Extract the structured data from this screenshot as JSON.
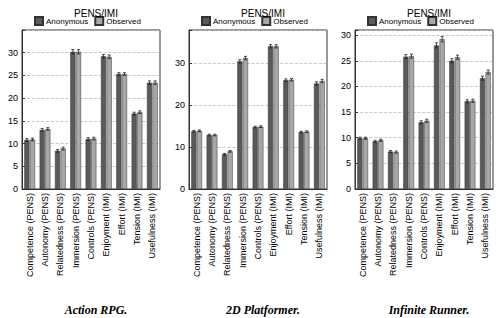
{
  "chart_data": [
    {
      "type": "bar",
      "title": "PENS/IMI",
      "xlabel": "Action RPG.",
      "categories": [
        "Competence (PENS)",
        "Autonomy (PENS)",
        "Relatedness (PENS)",
        "Immersion (PENS)",
        "Controls (PENS)",
        "Enjoyment (IMI)",
        "Effort (IMI)",
        "Tension (IMI)",
        "Usefulness (IMI)"
      ],
      "series": [
        {
          "name": "Anonymous",
          "color": "#5a5a5a",
          "values": [
            10.8,
            13.0,
            8.4,
            30.2,
            11.0,
            29.2,
            25.3,
            16.6,
            23.4
          ],
          "errors": [
            0.3,
            0.3,
            0.3,
            0.5,
            0.3,
            0.4,
            0.3,
            0.3,
            0.4
          ]
        },
        {
          "name": "Observed",
          "color": "#a8a8a8",
          "values": [
            10.9,
            13.2,
            8.9,
            30.2,
            11.1,
            29.1,
            25.3,
            16.9,
            23.4
          ],
          "errors": [
            0.3,
            0.3,
            0.3,
            0.5,
            0.3,
            0.4,
            0.3,
            0.3,
            0.4
          ]
        }
      ],
      "ylim": [
        0,
        35
      ],
      "yticks": [
        0,
        5,
        10,
        15,
        20,
        25,
        30
      ],
      "grid": true,
      "legend": "top"
    },
    {
      "type": "bar",
      "title": "PENS/IMI",
      "xlabel": "2D Platformer.",
      "categories": [
        "Competence (PENS)",
        "Autonomy (PENS)",
        "Relatedness (PENS)",
        "Immersion (PENS)",
        "Controls (PENS)",
        "Enjoyment (IMI)",
        "Effort (IMI)",
        "Tension (IMI)",
        "Usefulness (IMI)"
      ],
      "series": [
        {
          "name": "Anonymous",
          "color": "#5a5a5a",
          "values": [
            13.8,
            12.9,
            8.3,
            30.5,
            14.8,
            34.1,
            26.0,
            13.6,
            25.2
          ],
          "errors": [
            0.2,
            0.2,
            0.2,
            0.4,
            0.2,
            0.4,
            0.3,
            0.2,
            0.4
          ]
        },
        {
          "name": "Observed",
          "color": "#a8a8a8",
          "values": [
            13.9,
            12.9,
            9.0,
            31.3,
            14.9,
            34.1,
            26.1,
            13.7,
            25.8
          ],
          "errors": [
            0.2,
            0.2,
            0.2,
            0.4,
            0.2,
            0.4,
            0.3,
            0.2,
            0.4
          ]
        }
      ],
      "ylim": [
        0,
        38
      ],
      "yticks": [
        0,
        10,
        20,
        30
      ],
      "grid": true,
      "legend": "top"
    },
    {
      "type": "bar",
      "title": "PENS/IMI",
      "xlabel": "Infinite Runner.",
      "categories": [
        "Competence (PENS)",
        "Autonomy (PENS)",
        "Relatedness (PENS)",
        "Immersion (PENS)",
        "Controls (PENS)",
        "Enjoyment (IMI)",
        "Effort (IMI)",
        "Tension (IMI)",
        "Usefulness (IMI)"
      ],
      "series": [
        {
          "name": "Anonymous",
          "color": "#5a5a5a",
          "values": [
            9.9,
            9.3,
            7.3,
            25.8,
            13.0,
            28.0,
            25.0,
            17.1,
            21.6
          ],
          "errors": [
            0.2,
            0.2,
            0.2,
            0.4,
            0.3,
            0.5,
            0.4,
            0.3,
            0.4
          ]
        },
        {
          "name": "Observed",
          "color": "#a8a8a8",
          "values": [
            9.9,
            9.5,
            7.2,
            25.9,
            13.3,
            29.2,
            25.7,
            17.2,
            22.8
          ],
          "errors": [
            0.2,
            0.2,
            0.2,
            0.4,
            0.3,
            0.5,
            0.4,
            0.3,
            0.4
          ]
        }
      ],
      "ylim": [
        0,
        31
      ],
      "yticks": [
        0,
        5,
        10,
        15,
        20,
        25,
        30
      ],
      "grid": true,
      "legend": "top"
    }
  ]
}
